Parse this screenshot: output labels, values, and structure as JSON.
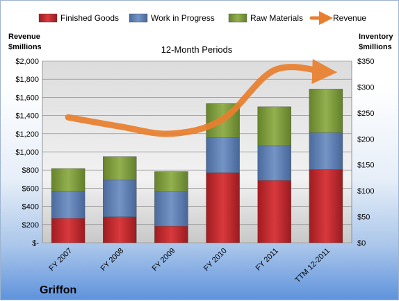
{
  "chart_data": {
    "type": "bar",
    "subtype": "stacked-bar-with-line",
    "title": "12-Month Periods",
    "company": "Griffon",
    "categories": [
      "FY 2007",
      "FY 2008",
      "FY 2009",
      "FY 2010",
      "FY 2011",
      "TTM 12-2011"
    ],
    "series": [
      {
        "name": "Finished Goods",
        "axis": "right",
        "color": "#c0262b",
        "values": [
          47,
          50,
          32,
          135,
          120,
          141
        ]
      },
      {
        "name": "Work in Progress",
        "axis": "right",
        "color": "#5d7fb2",
        "values": [
          52,
          71,
          66,
          67,
          67,
          71
        ]
      },
      {
        "name": "Raw Materials",
        "axis": "right",
        "color": "#7f9c3b",
        "values": [
          44,
          45,
          39,
          66,
          75,
          84
        ]
      },
      {
        "name": "Revenue",
        "axis": "left",
        "type": "line",
        "color": "#e97f2e",
        "values": [
          1380,
          1280,
          1200,
          1360,
          1900,
          1880
        ]
      }
    ],
    "left_axis": {
      "label_line1": "Revenue",
      "label_line2": "$millions",
      "min": 0,
      "max": 2000,
      "step": 200,
      "tick_labels": [
        "$-",
        "$200",
        "$400",
        "$600",
        "$800",
        "$1,000",
        "$1,200",
        "$1,400",
        "$1,600",
        "$1,800",
        "$2,000"
      ]
    },
    "right_axis": {
      "label_line1": "Inventory",
      "label_line2": "$millions",
      "min": 0,
      "max": 350,
      "step": 50,
      "tick_labels": [
        "$0",
        "$50",
        "$100",
        "$150",
        "$200",
        "$250",
        "$300",
        "$350"
      ]
    },
    "grid": true,
    "legend_position": "top"
  }
}
